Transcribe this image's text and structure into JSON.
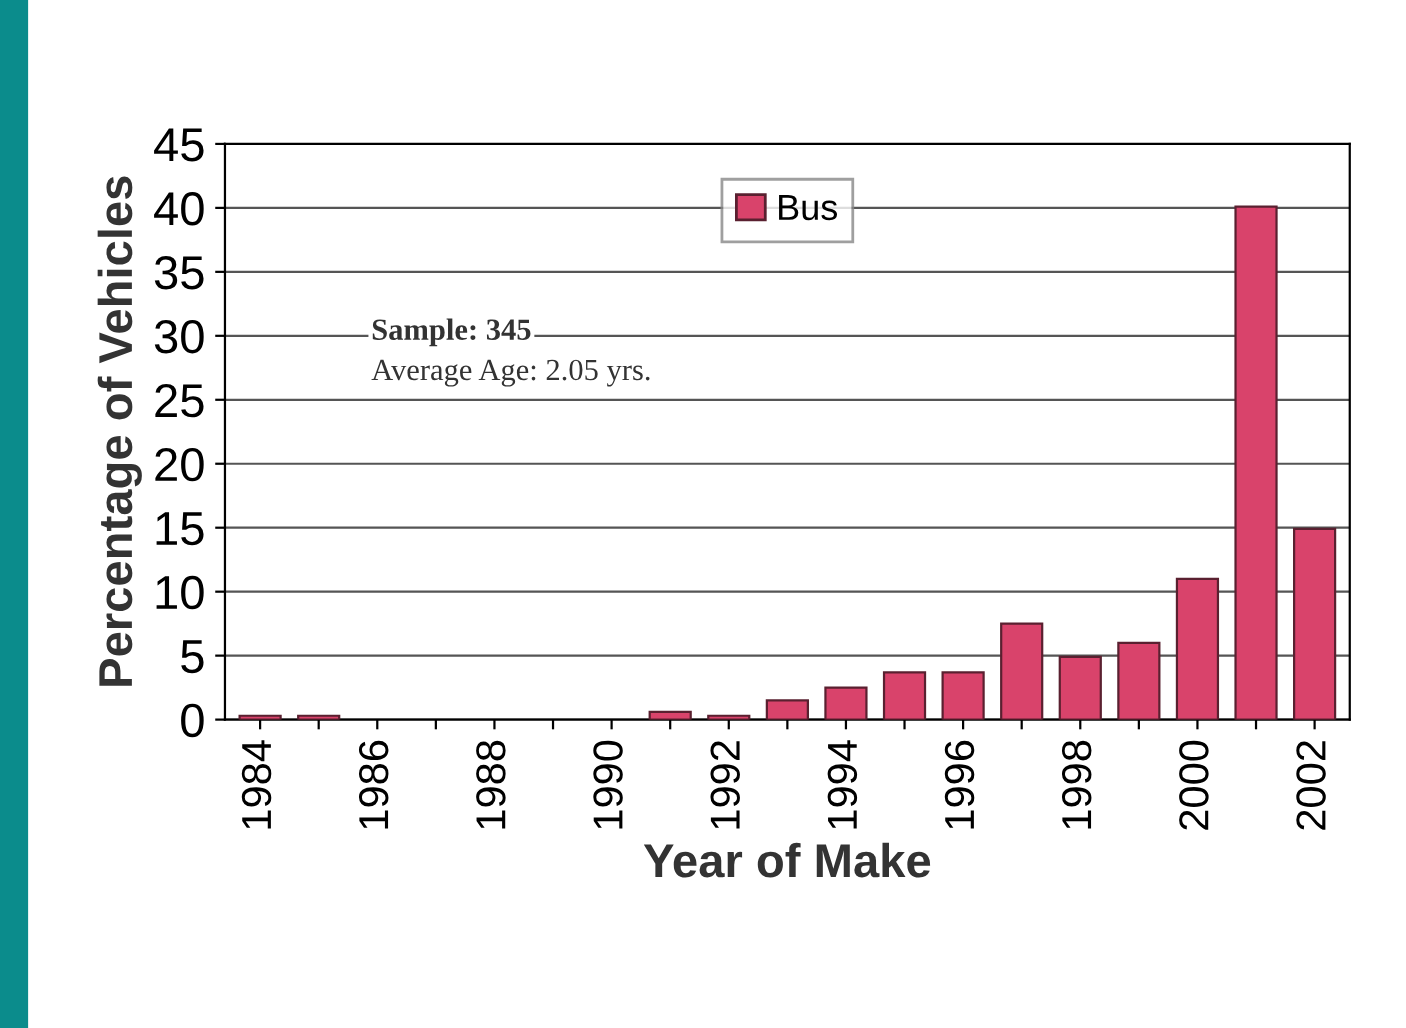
{
  "chart_data": {
    "type": "bar",
    "xlabel": "Year of Make",
    "ylabel": "Percentage of Vehicles",
    "categories": [
      "1984",
      null,
      "1986",
      null,
      "1988",
      null,
      "1990",
      null,
      "1992",
      null,
      "1994",
      null,
      "1996",
      null,
      "1998",
      null,
      "2000",
      null,
      "2002"
    ],
    "series": [
      {
        "name": "Bus",
        "color": "#d9436b",
        "values": [
          0.3,
          0.3,
          0,
          0,
          0,
          0,
          0,
          0.6,
          0.3,
          1.5,
          2.5,
          3.7,
          3.7,
          7.5,
          4.9,
          6.0,
          11.0,
          40.1,
          14.9
        ]
      }
    ],
    "ylim": [
      0,
      45
    ],
    "yticks": [
      0,
      5,
      10,
      15,
      20,
      25,
      30,
      35,
      40,
      45
    ],
    "grid": "y",
    "legend": "top right",
    "annotations": [
      "Sample: 345",
      "Average Age: 2.05 yrs."
    ]
  }
}
